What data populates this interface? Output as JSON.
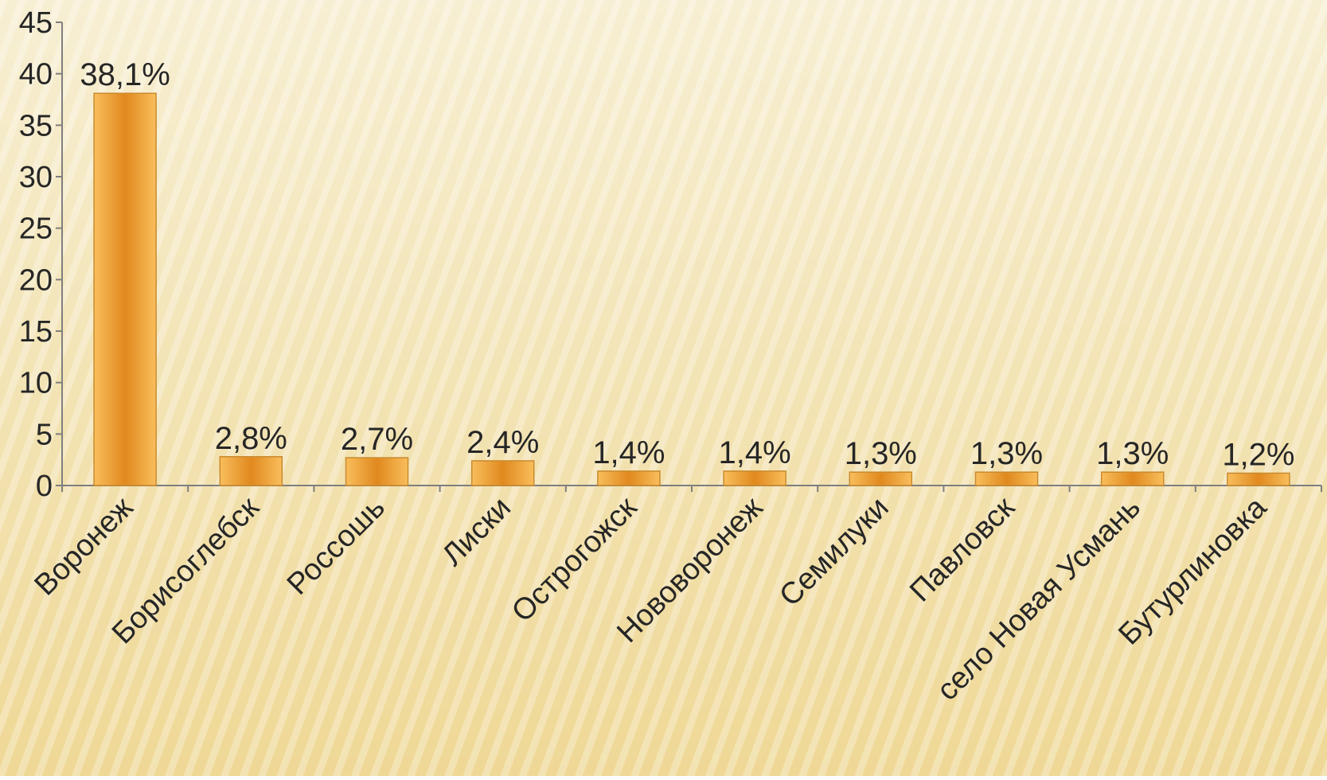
{
  "colors": {
    "background_top": "#F7EFD3",
    "background_bottom": "#EFD896",
    "bar_light": "#F9BE5C",
    "bar_dark": "#E0891E",
    "bar_stroke": "#C98A2E",
    "axis": "#7F7F7F",
    "text": "#262626"
  },
  "chart_data": {
    "type": "bar",
    "categories": [
      "Воронеж",
      "Борисоглебск",
      "Россошь",
      "Лиски",
      "Острогожск",
      "Нововоронеж",
      "Семилуки",
      "Павловск",
      "село Новая Усмань",
      "Бутурлиновка"
    ],
    "values": [
      38.1,
      2.8,
      2.7,
      2.4,
      1.4,
      1.4,
      1.3,
      1.3,
      1.3,
      1.2
    ],
    "data_labels": [
      "38,1%",
      "2,8%",
      "2,7%",
      "2,4%",
      "1,4%",
      "1,4%",
      "1,3%",
      "1,3%",
      "1,3%",
      "1,2%"
    ],
    "y_ticks": [
      0,
      5,
      10,
      15,
      20,
      25,
      30,
      35,
      40,
      45
    ],
    "ylim": [
      0,
      45
    ],
    "title": "",
    "xlabel": "",
    "ylabel": "",
    "grid": false,
    "legend": "none"
  }
}
